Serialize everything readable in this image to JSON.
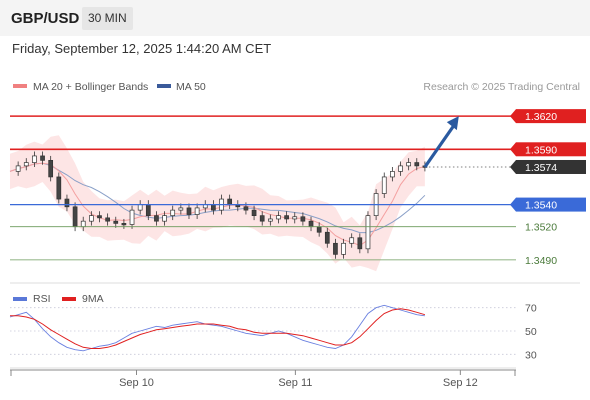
{
  "header": {
    "symbol": "GBP/USD",
    "timeframe": "30 MIN",
    "datetime": "Friday, September 12, 2025 1:44:20 AM CET"
  },
  "legend": {
    "ma20_label": "MA 20 + Bollinger Bands",
    "ma50_label": "MA 50",
    "copyright": "Research © 2025 Trading Central",
    "ma20_color": "#f08080",
    "ma50_color": "#3a5a9a"
  },
  "rsi_legend": {
    "rsi_label": "RSI",
    "ma_label": "9MA",
    "rsi_color": "#5a78d8",
    "ma_color": "#e02020"
  },
  "chart_data": [
    {
      "type": "candlestick",
      "ylim": [
        1.347,
        1.364
      ],
      "xlim": [
        0,
        100
      ],
      "x_ticks": [
        {
          "x": 25.0,
          "label": "Sep 10"
        },
        {
          "x": 56.4,
          "label": "Sep 11"
        },
        {
          "x": 89.0,
          "label": "Sep 12"
        }
      ],
      "levels": [
        {
          "value": 1.362,
          "label": "1.3620",
          "style": "resistance"
        },
        {
          "value": 1.359,
          "label": "1.3590",
          "style": "resistance"
        },
        {
          "value": 1.3574,
          "label": "1.3574",
          "style": "current"
        },
        {
          "value": 1.354,
          "label": "1.3540",
          "style": "pivot"
        },
        {
          "value": 1.352,
          "label": "1.3520",
          "style": "support"
        },
        {
          "value": 1.349,
          "label": "1.3490",
          "style": "support"
        }
      ],
      "close_series": [
        1.357,
        1.3575,
        1.3578,
        1.3584,
        1.358,
        1.3565,
        1.3545,
        1.3538,
        1.352,
        1.3525,
        1.353,
        1.3528,
        1.3525,
        1.3523,
        1.3522,
        1.3535,
        1.354,
        1.353,
        1.3525,
        1.353,
        1.3535,
        1.3537,
        1.3531,
        1.3537,
        1.354,
        1.3535,
        1.3545,
        1.354,
        1.3538,
        1.3535,
        1.353,
        1.3525,
        1.3527,
        1.353,
        1.3527,
        1.3529,
        1.3525,
        1.352,
        1.3515,
        1.3505,
        1.3495,
        1.3505,
        1.351,
        1.35,
        1.353,
        1.355,
        1.3565,
        1.357,
        1.3575,
        1.3578,
        1.3575,
        1.3574
      ],
      "projection": {
        "from": {
          "x": 82,
          "y": 1.3574
        },
        "to": {
          "x": 88.7,
          "y": 1.362
        }
      }
    },
    {
      "type": "line",
      "title": "RSI",
      "ylim": [
        20,
        80
      ],
      "y_ticks": [
        70,
        50,
        30
      ],
      "series": [
        {
          "name": "RSI",
          "values": [
            62,
            64,
            66,
            60,
            52,
            45,
            40,
            36,
            34,
            33,
            35,
            37,
            38,
            40,
            44,
            48,
            50,
            52,
            54,
            53,
            55,
            56,
            57,
            58,
            56,
            55,
            54,
            52,
            50,
            48,
            47,
            46,
            48,
            50,
            48,
            45,
            42,
            40,
            38,
            36,
            35,
            38,
            45,
            55,
            65,
            70,
            72,
            70,
            68,
            66,
            64,
            63
          ]
        },
        {
          "name": "9MA",
          "values": [
            63,
            63,
            62,
            60,
            56,
            51,
            47,
            43,
            39,
            36,
            35,
            35,
            36,
            38,
            41,
            44,
            47,
            49,
            51,
            52,
            53,
            54,
            55,
            56,
            56,
            56,
            55,
            54,
            52,
            51,
            49,
            48,
            48,
            48,
            48,
            47,
            46,
            44,
            42,
            40,
            38,
            38,
            40,
            45,
            52,
            59,
            65,
            68,
            69,
            68,
            66,
            64
          ]
        }
      ]
    }
  ]
}
